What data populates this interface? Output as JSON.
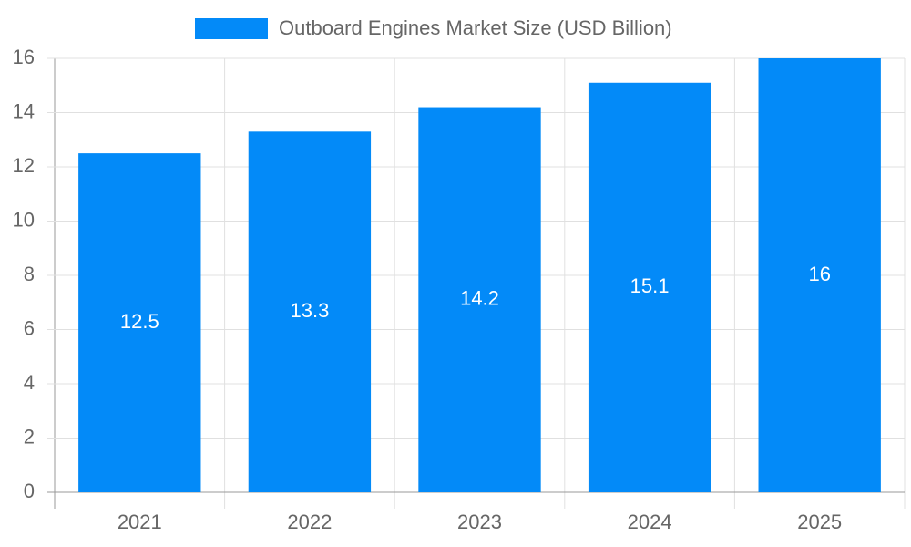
{
  "chart_data": {
    "type": "bar",
    "categories": [
      "2021",
      "2022",
      "2023",
      "2024",
      "2025"
    ],
    "series": [
      {
        "name": "Outboard Engines Market Size (USD Billion)",
        "color": "#038af8",
        "values": [
          12.5,
          13.3,
          14.2,
          15.1,
          16
        ]
      }
    ],
    "ylim": [
      0,
      16
    ],
    "yticks": [
      0,
      2,
      4,
      6,
      8,
      10,
      12,
      14,
      16
    ],
    "grid": true,
    "legend": "top"
  }
}
